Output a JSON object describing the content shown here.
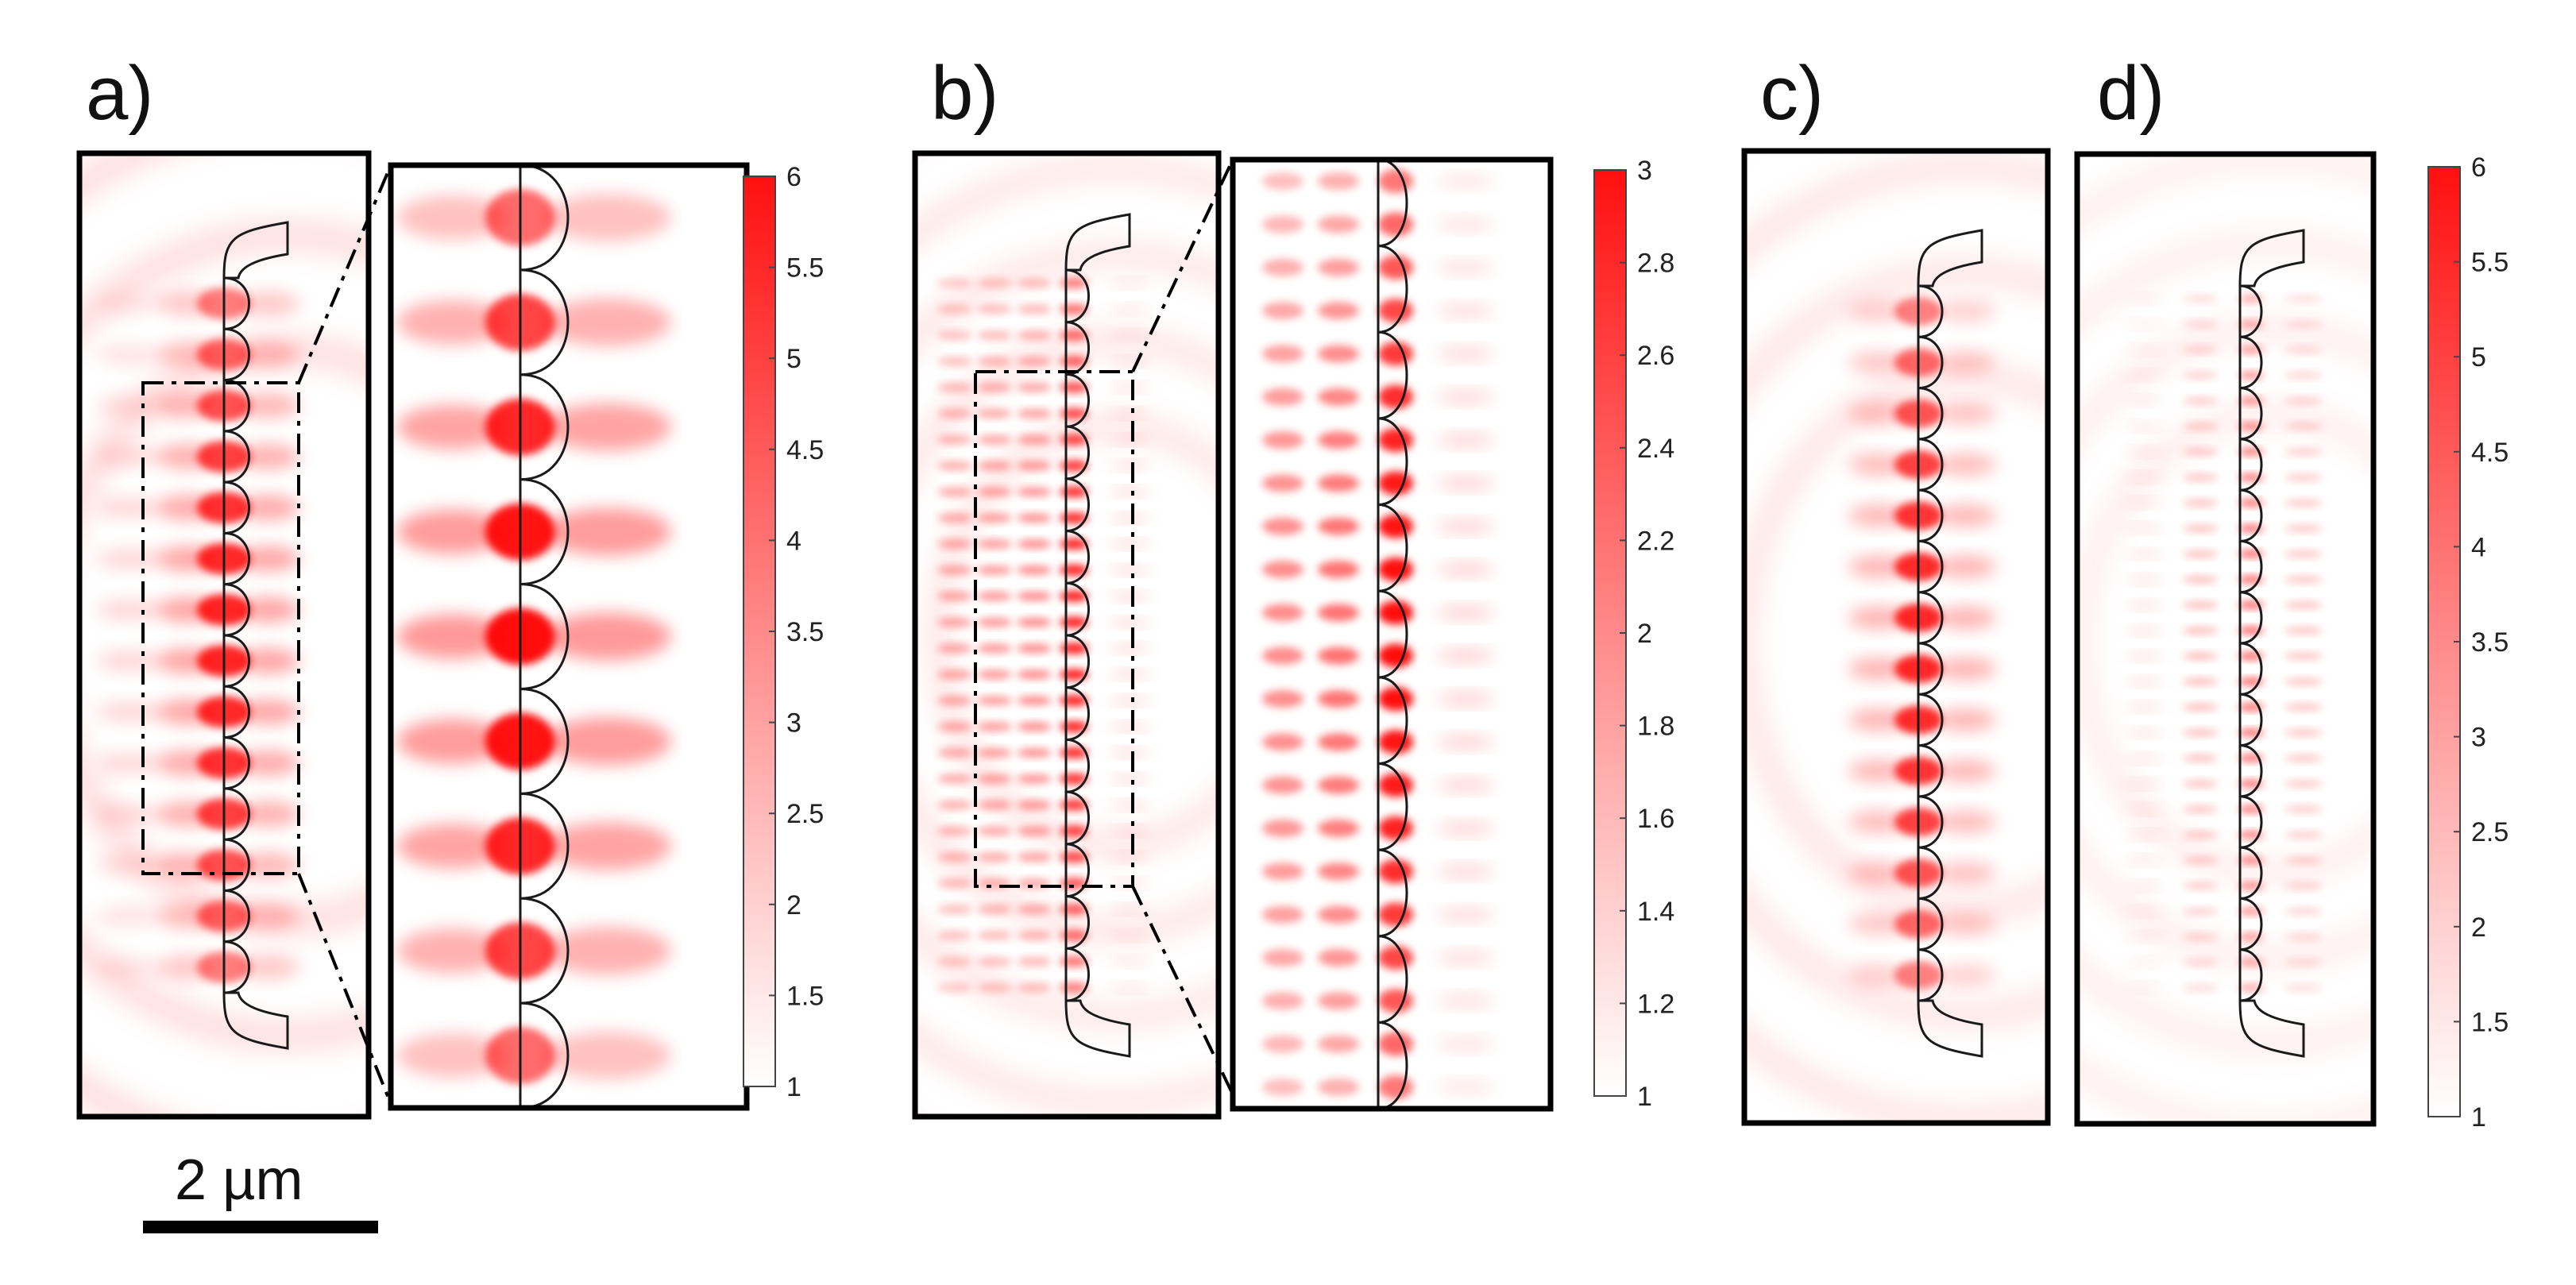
{
  "figure": {
    "panel_labels": [
      "a)",
      "b)",
      "c)",
      "d)"
    ],
    "scale_bar": {
      "label": "2 µm",
      "length_um": 2
    },
    "colors": {
      "field_max": "#ff0000",
      "field_min": "#ffffff",
      "outline": "#1a1a1a"
    },
    "panels": [
      {
        "id": "a",
        "antenna_count": 14,
        "has_zoom_inset": true,
        "colorbar_index": 0
      },
      {
        "id": "b",
        "antenna_count": 14,
        "has_zoom_inset": true,
        "colorbar_index": 1
      },
      {
        "id": "c",
        "antenna_count": 14,
        "has_zoom_inset": false,
        "colorbar_index": null
      },
      {
        "id": "d",
        "antenna_count": 14,
        "has_zoom_inset": false,
        "colorbar_index": 2
      }
    ],
    "colorbars": [
      {
        "min": 1,
        "max": 6,
        "ticks": [
          "6",
          "5.5",
          "5",
          "4.5",
          "4",
          "3.5",
          "3",
          "2.5",
          "2",
          "1.5",
          "1"
        ]
      },
      {
        "min": 1,
        "max": 3,
        "ticks": [
          "3",
          "2.8",
          "2.6",
          "2.4",
          "2.2",
          "2",
          "1.8",
          "1.6",
          "1.4",
          "1.2",
          "1"
        ]
      },
      {
        "min": 1,
        "max": 6,
        "ticks": [
          "6",
          "5.5",
          "5",
          "4.5",
          "4",
          "3.5",
          "3",
          "2.5",
          "2",
          "1.5",
          "1"
        ]
      }
    ]
  }
}
